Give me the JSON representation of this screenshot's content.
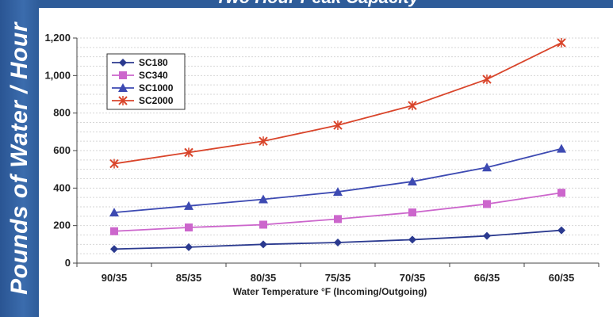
{
  "header": {
    "title": "Two Hour Peak Capacity"
  },
  "chart_data": {
    "type": "line",
    "title": "Two Hour Peak Capacity",
    "ylabel": "Pounds of Water / Hour",
    "xlabel": "Water Temperature °F (Incoming/Outgoing)",
    "categories": [
      "90/35",
      "85/35",
      "80/35",
      "75/35",
      "70/35",
      "66/35",
      "60/35"
    ],
    "ylim": [
      0,
      1200
    ],
    "yticks": [
      "0",
      "200",
      "400",
      "600",
      "800",
      "1,000",
      "1,200"
    ],
    "ytick_values": [
      0,
      200,
      400,
      600,
      800,
      1000,
      1200
    ],
    "grid": true,
    "legend_position": "top-left",
    "series": [
      {
        "name": "SC180",
        "color": "#2b3a8f",
        "marker": "diamond",
        "values": [
          75,
          85,
          100,
          110,
          125,
          145,
          175
        ]
      },
      {
        "name": "SC340",
        "color": "#cc66cc",
        "marker": "square",
        "values": [
          170,
          190,
          205,
          235,
          270,
          315,
          375
        ]
      },
      {
        "name": "SC1000",
        "color": "#3d4ab2",
        "marker": "triangle",
        "values": [
          270,
          305,
          340,
          380,
          435,
          510,
          610
        ]
      },
      {
        "name": "SC2000",
        "color": "#d9452b",
        "marker": "x",
        "values": [
          530,
          590,
          650,
          735,
          840,
          980,
          1175
        ]
      }
    ]
  }
}
